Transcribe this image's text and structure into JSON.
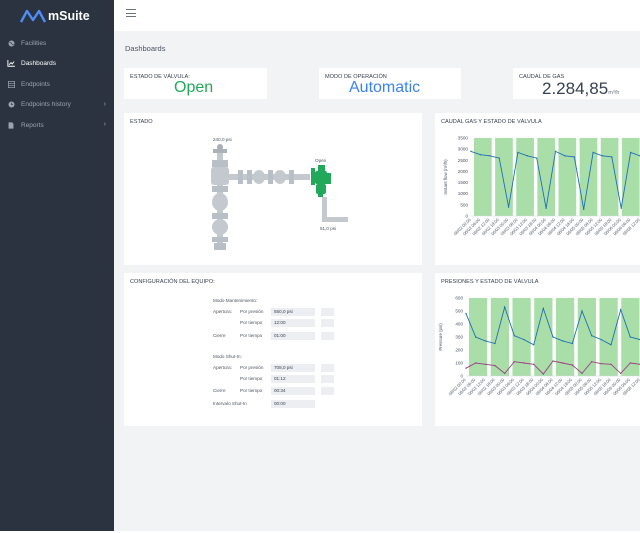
{
  "app": {
    "brand": "mSuite"
  },
  "sidebar": {
    "items": [
      {
        "label": "Facilities",
        "icon": "globe-icon"
      },
      {
        "label": "Dashboards",
        "icon": "chart-line-icon"
      },
      {
        "label": "Endpoints",
        "icon": "grid-icon"
      },
      {
        "label": "Endpoints history",
        "icon": "history-icon"
      },
      {
        "label": "Reports",
        "icon": "document-icon"
      }
    ]
  },
  "page": {
    "title": "Dashboards"
  },
  "kpis": {
    "valve_state": {
      "label": "ESTADO DE VÁLVULA:",
      "value": "Open"
    },
    "operation_mode": {
      "label": "MODO DE OPERACIÓN",
      "value": "Automatic"
    },
    "gas_flow": {
      "label": "CAUDAL DE GAS",
      "value": "2.284,85",
      "unit": "m³/h"
    }
  },
  "estado": {
    "title": "ESTADO",
    "pressure_in": "240,0 psi",
    "pressure_out": "51,0 psi",
    "valve_label": "Open"
  },
  "config": {
    "title": "CONFIGURACIÓN DEL EQUIPO:",
    "maintenance": {
      "heading": "Modo Mantenimiento:",
      "open_label": "Apertura:",
      "by_pressure": "Por presión",
      "by_time": "Por tiempo",
      "close_label": "Cierre",
      "open_pressure": "550,0 psi",
      "open_time": "12:00",
      "close_time": "01:00"
    },
    "shutin": {
      "heading": "Modo Shut-In:",
      "open_label": "Apertura:",
      "by_pressure": "Por presión",
      "by_time": "Por tiempo",
      "close_label": "Cierre",
      "open_pressure": "708,0 psi",
      "open_time": "01:12",
      "close_time": "00:34",
      "interval_label": "Intervalo Shut-In",
      "interval": "00:00"
    }
  },
  "colors": {
    "sidebar_bg": "#2b3340",
    "accent_blue": "#3b82f6",
    "open_green": "#22a85a",
    "band_green": "#9ad89a",
    "line_blue": "#1f6fb2",
    "line_purple": "#9b3f86"
  },
  "chart_data": [
    {
      "type": "line",
      "title": "CAUDAL GAS Y ESTADO DE VÁLVULA",
      "ylabel": "Instant flow (m³/h)",
      "ylim": [
        0,
        3500
      ],
      "yticks": [
        0,
        500,
        1000,
        1500,
        2000,
        2500,
        3000,
        3500
      ],
      "x": [
        "06/02 00:00",
        "06/02 06:00",
        "06/02 12:00",
        "06/02 18:00",
        "06/03 00:00",
        "06/03 06:00",
        "06/03 12:00",
        "06/03 18:00",
        "06/04 00:00",
        "06/04 06:00",
        "06/04 12:00",
        "06/04 18:00",
        "06/05 00:00",
        "06/05 06:00",
        "06/05 12:00",
        "06/05 18:00",
        "06/06 00:00",
        "06/06 06:00",
        "06/06 12:00"
      ],
      "series": [
        {
          "values": [
            2900,
            2750,
            2700,
            2600,
            400,
            2850,
            2700,
            2600,
            350,
            2900,
            2700,
            2650,
            300,
            2850,
            2700,
            2650,
            350,
            2850,
            2700
          ]
        }
      ]
    },
    {
      "type": "line",
      "title": "PRESIONES Y ESTADO DE VÁLVULA",
      "ylabel": "Pressure (psi)",
      "ylim": [
        0,
        600
      ],
      "yticks": [
        0,
        100,
        200,
        300,
        400,
        500,
        600
      ],
      "x": [
        "06/02 00:00",
        "06/02 06:00",
        "06/02 12:00",
        "06/02 18:00",
        "06/03 00:00",
        "06/03 06:00",
        "06/03 12:00",
        "06/03 18:00",
        "06/04 00:00",
        "06/04 06:00",
        "06/04 12:00",
        "06/04 18:00",
        "06/05 00:00",
        "06/05 06:00",
        "06/05 12:00",
        "06/05 18:00",
        "06/06 00:00",
        "06/06 06:00",
        "06/06 12:00"
      ],
      "series": [
        {
          "values": [
            480,
            300,
            270,
            250,
            530,
            310,
            280,
            240,
            520,
            300,
            270,
            250,
            500,
            310,
            280,
            240,
            510,
            300,
            280
          ]
        },
        {
          "values": [
            60,
            100,
            90,
            80,
            20,
            110,
            100,
            90,
            15,
            115,
            100,
            85,
            20,
            110,
            95,
            90,
            20,
            100,
            90
          ]
        }
      ]
    }
  ]
}
